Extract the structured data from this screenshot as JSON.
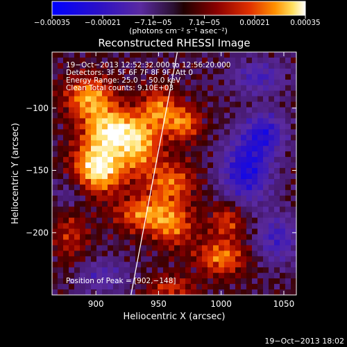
{
  "chart_data": {
    "type": "heatmap",
    "title": "Reconstructed RHESSI Image",
    "xlabel": "Heliocentric X (arcsec)",
    "ylabel": "Heliocentric Y (arcsec)",
    "xlim": [
      865,
      1060
    ],
    "ylim": [
      -250,
      -55
    ],
    "x_ticks": [
      900,
      950,
      1000,
      1050
    ],
    "x_tick_labels": [
      "900",
      "950",
      "1000",
      "1050"
    ],
    "y_ticks": [
      -100,
      -150,
      -200
    ],
    "y_tick_labels": [
      "−100",
      "−150",
      "−200"
    ],
    "colorbar": {
      "min": -0.00035,
      "max": 0.00035,
      "ticks": [
        -0.00035,
        -0.00021,
        -7.1e-05,
        7.1e-05,
        0.00021,
        0.00035
      ],
      "tick_labels": [
        "−0.00035",
        "−0.00021",
        "−7.1e−05",
        "7.1e−05",
        "0.00021",
        "0.00035"
      ],
      "units": "(photons cm⁻² s⁻¹ asec⁻²)"
    },
    "annotations": [
      "19−Oct−2013 12:52:32.000 to 12:56:20.000",
      "Detectors: 3F 5F 6F 7F 8F 9F, Att 0",
      "Energy Range: 25.0 − 50.0 keV",
      "Clean    Total counts: 9.10E+03"
    ],
    "peak_label": "Position of Peak = [902,−148]",
    "peak": [
      902,
      -148
    ],
    "limb_line": [
      [
        928,
        -250
      ],
      [
        965,
        -55
      ]
    ],
    "hot_spots": [
      {
        "x": 902,
        "y": -148,
        "amp": 1.0,
        "sx": 14,
        "sy": 14
      },
      {
        "x": 912,
        "y": -118,
        "amp": 0.85,
        "sx": 15,
        "sy": 12
      },
      {
        "x": 895,
        "y": -92,
        "amp": 0.7,
        "sx": 14,
        "sy": 12
      },
      {
        "x": 935,
        "y": -130,
        "amp": 0.65,
        "sx": 12,
        "sy": 16
      },
      {
        "x": 950,
        "y": -100,
        "amp": 0.55,
        "sx": 10,
        "sy": 12
      },
      {
        "x": 970,
        "y": -112,
        "amp": 0.6,
        "sx": 10,
        "sy": 10
      },
      {
        "x": 960,
        "y": -160,
        "amp": 0.55,
        "sx": 14,
        "sy": 12
      },
      {
        "x": 938,
        "y": -185,
        "amp": 0.6,
        "sx": 16,
        "sy": 10
      },
      {
        "x": 962,
        "y": -195,
        "amp": 0.5,
        "sx": 12,
        "sy": 12
      },
      {
        "x": 1000,
        "y": -220,
        "amp": 0.6,
        "sx": 14,
        "sy": 10
      },
      {
        "x": 1005,
        "y": -190,
        "amp": 0.45,
        "sx": 10,
        "sy": 10
      },
      {
        "x": 880,
        "y": -200,
        "amp": 0.35,
        "sx": 10,
        "sy": 18
      },
      {
        "x": 960,
        "y": -245,
        "amp": 0.4,
        "sx": 14,
        "sy": 8
      }
    ],
    "cold_spots": [
      {
        "x": 1020,
        "y": -150,
        "amp": -0.75,
        "sx": 14,
        "sy": 18
      },
      {
        "x": 1035,
        "y": -120,
        "amp": -0.6,
        "sx": 12,
        "sy": 12
      },
      {
        "x": 1045,
        "y": -205,
        "amp": -0.5,
        "sx": 12,
        "sy": 14
      },
      {
        "x": 1030,
        "y": -75,
        "amp": -0.45,
        "sx": 16,
        "sy": 10
      },
      {
        "x": 905,
        "y": -235,
        "amp": -0.35,
        "sx": 16,
        "sy": 10
      },
      {
        "x": 880,
        "y": -170,
        "amp": -0.3,
        "sx": 10,
        "sy": 12
      }
    ]
  },
  "footer_timestamp": "19−Oct−2013 18:02"
}
